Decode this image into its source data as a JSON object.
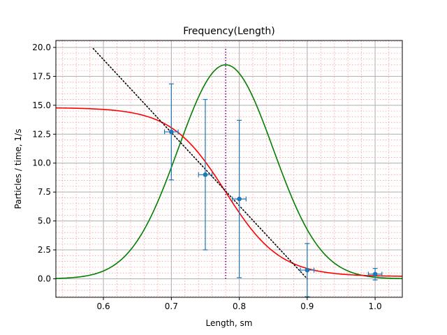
{
  "chart_data": {
    "type": "line",
    "title": "Frequency(Length)",
    "xlabel": "Length, sm",
    "ylabel": "Particles / time, 1/s",
    "xlim": [
      0.53,
      1.04
    ],
    "ylim": [
      -1.6,
      20.6
    ],
    "grid": true,
    "grid_minor": true,
    "x_ticks": [
      "0.6",
      "0.7",
      "0.8",
      "0.9",
      "1.0"
    ],
    "x_tick_values": [
      0.6,
      0.7,
      0.8,
      0.9,
      1.0
    ],
    "y_ticks": [
      "0.0",
      "2.5",
      "5.0",
      "7.5",
      "10.0",
      "12.5",
      "15.0",
      "17.5",
      "20.0"
    ],
    "y_tick_values": [
      0.0,
      2.5,
      5.0,
      7.5,
      10.0,
      12.5,
      15.0,
      17.5,
      20.0
    ],
    "colors": {
      "measured": "#1f77b4",
      "sigmoid": "#ff0000",
      "gaussian": "#008000",
      "tangent": "#000000",
      "vline": "#800080",
      "major_grid": "#b0b0b0",
      "minor_grid": "#ff9999"
    },
    "series": [
      {
        "kind": "errorbar",
        "color_key": "measured",
        "points": [
          {
            "x": 0.7,
            "y": 12.7,
            "xerr": 0.01,
            "yerr": 4.15
          },
          {
            "x": 0.75,
            "y": 9.0,
            "xerr": 0.01,
            "yerr": 6.5
          },
          {
            "x": 0.8,
            "y": 6.9,
            "xerr": 0.01,
            "yerr": 6.8
          },
          {
            "x": 0.9,
            "y": 0.75,
            "xerr": 0.01,
            "yerr": 2.3
          },
          {
            "x": 1.0,
            "y": 0.4,
            "xerr": 0.01,
            "yerr": 0.5
          }
        ]
      },
      {
        "kind": "sigmoid",
        "color_key": "sigmoid",
        "params": {
          "low": 0.2,
          "high": 14.8,
          "center": 0.78,
          "width": 0.04
        }
      },
      {
        "kind": "gaussian",
        "color_key": "gaussian",
        "params": {
          "base": 0.0,
          "amplitude": 18.5,
          "center": 0.78,
          "sigma": 0.07
        }
      },
      {
        "kind": "tangent",
        "color_key": "tangent",
        "from": {
          "x": 0.585,
          "y": 19.9
        },
        "to": {
          "x": 0.9,
          "y": 0.0
        }
      },
      {
        "kind": "vline",
        "color_key": "vline",
        "x": 0.78,
        "y_from": 0.0,
        "y_to": 20.0
      }
    ]
  }
}
